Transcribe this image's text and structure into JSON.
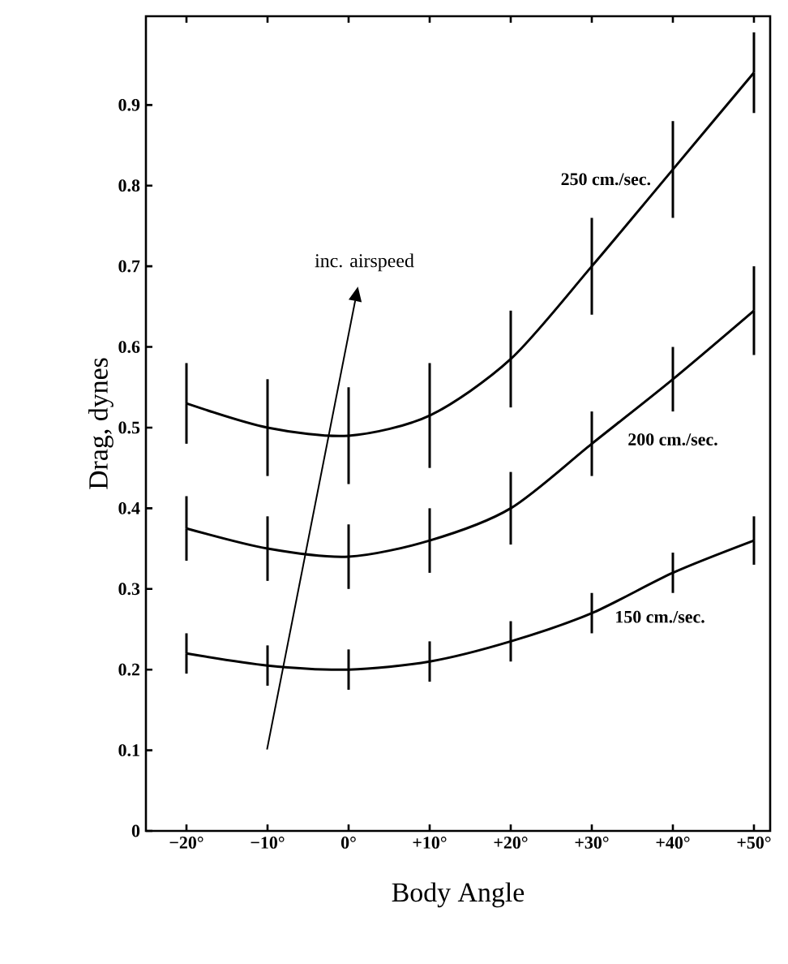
{
  "chart_data": {
    "type": "line",
    "xlabel": "Body Angle",
    "ylabel": "Drag, dynes",
    "annotations": [
      "inc. airspeed"
    ],
    "x": [
      -20,
      -10,
      0,
      10,
      20,
      30,
      40,
      50
    ],
    "series": [
      {
        "name": "250 cm./sec.",
        "color": "#000000",
        "values": [
          0.53,
          0.5,
          0.49,
          0.515,
          0.585,
          0.7,
          0.82,
          0.94
        ],
        "errors": [
          0.05,
          0.06,
          0.06,
          0.065,
          0.06,
          0.06,
          0.06,
          0.05
        ]
      },
      {
        "name": "200 cm./sec.",
        "color": "#000000",
        "values": [
          0.375,
          0.35,
          0.34,
          0.36,
          0.4,
          0.48,
          0.56,
          0.645
        ],
        "errors": [
          0.04,
          0.04,
          0.04,
          0.04,
          0.045,
          0.04,
          0.04,
          0.055
        ]
      },
      {
        "name": "150 cm./sec.",
        "color": "#000000",
        "values": [
          0.22,
          0.205,
          0.2,
          0.21,
          0.235,
          0.27,
          0.32,
          0.36
        ],
        "errors": [
          0.025,
          0.025,
          0.025,
          0.025,
          0.025,
          0.025,
          0.025,
          0.03
        ]
      }
    ],
    "xlim": [
      -25,
      52
    ],
    "ylim": [
      0,
      1.01
    ],
    "xticks": [
      {
        "value": -20,
        "label": "−20°"
      },
      {
        "value": -10,
        "label": "−10°"
      },
      {
        "value": 0,
        "label": "0°"
      },
      {
        "value": 10,
        "label": "+10°"
      },
      {
        "value": 20,
        "label": "+20°"
      },
      {
        "value": 30,
        "label": "+30°"
      },
      {
        "value": 40,
        "label": "+40°"
      },
      {
        "value": 50,
        "label": "+50°"
      }
    ],
    "yticks": [
      0,
      0.1,
      0.2,
      0.3,
      0.4,
      0.5,
      0.6,
      0.7,
      0.8,
      0.9
    ],
    "line_style": "solid"
  }
}
